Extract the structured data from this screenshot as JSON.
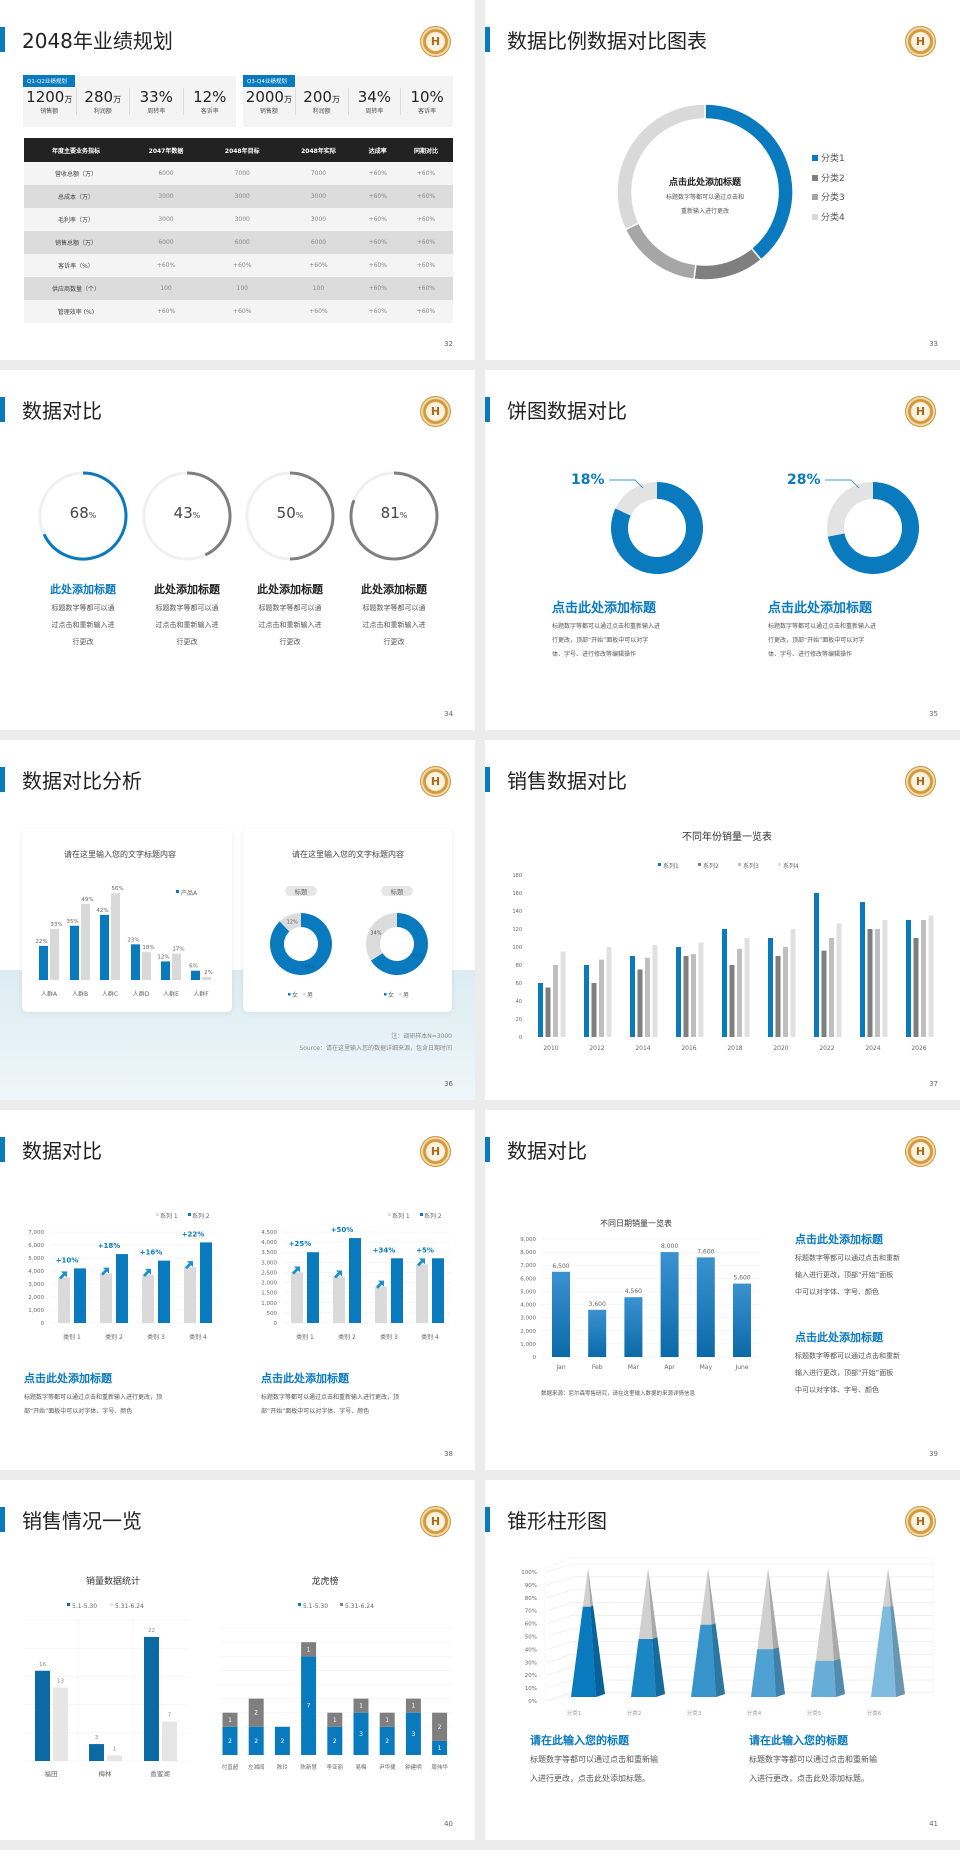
{
  "s32": {
    "title": "2048年业绩规划",
    "page": "32",
    "cards": [
      {
        "tab": "Q1-Q2业绩规划",
        "metrics": [
          {
            "value": "1200",
            "unit": "万",
            "label": "销售额"
          },
          {
            "value": "280",
            "unit": "万",
            "label": "利润额"
          },
          {
            "value": "33%",
            "unit": "",
            "label": "周转率"
          },
          {
            "value": "12%",
            "unit": "",
            "label": "客诉率"
          }
        ]
      },
      {
        "tab": "Q3-Q4业绩规划",
        "metrics": [
          {
            "value": "2000",
            "unit": "万",
            "label": "销售额"
          },
          {
            "value": "200",
            "unit": "万",
            "label": "利润额"
          },
          {
            "value": "34%",
            "unit": "",
            "label": "周转率"
          },
          {
            "value": "10%",
            "unit": "",
            "label": "客诉率"
          }
        ]
      }
    ],
    "table": {
      "header": [
        "年度主要业务指标",
        "2047年数据",
        "2048年目标",
        "2048年实际",
        "达成率",
        "同期对比"
      ],
      "rows": [
        [
          "营收总额（万）",
          "6000",
          "7000",
          "7000",
          "+60%",
          "+60%"
        ],
        [
          "总成本（万）",
          "3000",
          "3000",
          "3000",
          "+60%",
          "+60%"
        ],
        [
          "毛利率（万）",
          "3000",
          "3000",
          "3000",
          "+60%",
          "+60%"
        ],
        [
          "销售总额（万）",
          "6000",
          "6000",
          "6000",
          "+60%",
          "+60%"
        ],
        [
          "客诉率（%）",
          "+60%",
          "+60%",
          "+60%",
          "+60%",
          "+60%"
        ],
        [
          "供应商数量（个）",
          "100",
          "100",
          "100",
          "+60%",
          "+60%"
        ],
        [
          "管理效率 (%)",
          "+60%",
          "+60%",
          "+60%",
          "+60%",
          "+60%"
        ]
      ]
    }
  },
  "s33": {
    "title": "数据比例数据对比图表",
    "page": "33",
    "center_title": "点击此处添加标题",
    "center_text_1": "标题数字等都可以通过点击和",
    "center_text_2": "重新输入进行更改"
  },
  "s34": {
    "title": "数据对比",
    "page": "34",
    "items": [
      {
        "value_label": "68",
        "unit": "%",
        "heading": "此处添加标题",
        "lines": [
          "标题数字等都可以通",
          "过点击和重新输入进",
          "行更改"
        ]
      },
      {
        "value_label": "43",
        "unit": "%",
        "heading": "此处添加标题",
        "lines": [
          "标题数字等都可以通",
          "过点击和重新输入进",
          "行更改"
        ]
      },
      {
        "value_label": "50",
        "unit": "%",
        "heading": "此处添加标题",
        "lines": [
          "标题数字等都可以通",
          "过点击和重新输入进",
          "行更改"
        ]
      },
      {
        "value_label": "81",
        "unit": "%",
        "heading": "此处添加标题",
        "lines": [
          "标题数字等都可以通",
          "过点击和重新输入进",
          "行更改"
        ]
      }
    ]
  },
  "s35": {
    "title": "饼图数据对比",
    "page": "35",
    "items": [
      {
        "label": "18%",
        "heading": "点击此处添加标题",
        "lines": [
          "标题数字等都可以通过点击和重新输入进",
          "行更改，顶部“开始”面板中可以对字",
          "体、字号、进行修改等编辑操作"
        ]
      },
      {
        "label": "28%",
        "heading": "点击此处添加标题",
        "lines": [
          "标题数字等都可以通过点击和重新输入进",
          "行更改，顶部“开始”面板中可以对字",
          "体、字号、进行修改等编辑操作"
        ]
      }
    ]
  },
  "s36": {
    "title": "数据对比分析",
    "page": "36",
    "note": "注：调研样本N=3000",
    "source": "Source：请在这里输入您的数据详细来源，包含日期时间"
  },
  "s37": {
    "title": "销售数据对比",
    "page": "37"
  },
  "s38": {
    "title": "数据对比",
    "page": "38",
    "texts": [
      {
        "heading": "点击此处添加标题",
        "lines": [
          "标题数字等都可以通过点击和重新输入进行更改，顶",
          "部“开始”面板中可以对字体、字号、颜色"
        ]
      },
      {
        "heading": "点击此处添加标题",
        "lines": [
          "标题数字等都可以通过点击和重新输入进行更改，顶",
          "部“开始”面板中可以对字体、字号、颜色"
        ]
      }
    ]
  },
  "s39": {
    "title": "数据对比",
    "page": "39",
    "source": "数据来源：尼尔森零售研究，请在这里输入数据的来源详情信息",
    "texts": [
      {
        "heading": "点击此处添加标题",
        "lines": [
          "标题数字等都可以通过点击和重新",
          "输入进行更改，顶部“开始”面板",
          "中可以对字体、字号、颜色"
        ]
      },
      {
        "heading": "点击此处添加标题",
        "lines": [
          "标题数字等都可以通过点击和重新",
          "输入进行更改，顶部“开始”面板",
          "中可以对字体、字号、颜色"
        ]
      }
    ]
  },
  "s40": {
    "title": "销售情况一览",
    "page": "40"
  },
  "s41": {
    "title": "锥形柱形图",
    "page": "41",
    "texts": [
      {
        "heading": "请在此输入您的标题",
        "lines": [
          "标题数字等都可以通过点击和重新输",
          "入进行更改，点击此处添加标题。"
        ]
      },
      {
        "heading": "请在此输入您的标题",
        "lines": [
          "标题数字等都可以通过点击和重新输",
          "入进行更改，点击此处添加标题。"
        ]
      }
    ]
  },
  "logo_text": "H",
  "colors": {
    "accent": "#0a7abf",
    "dark_gray": "#7f7f7f",
    "mid_gray": "#bfbfbf",
    "light_gray": "#e0e0e0"
  },
  "chart_data": [
    {
      "type": "pie",
      "donut": true,
      "categories": [
        "分类1",
        "分类2",
        "分类3",
        "分类4"
      ],
      "values": [
        39,
        13,
        16,
        32
      ],
      "colors": [
        "#0a7abf",
        "#7f7f7f",
        "#a6a6a6",
        "#d9d9d9"
      ],
      "legend": "right"
    },
    {
      "type": "pie",
      "donut": true,
      "values": [
        68,
        43,
        50,
        81
      ],
      "unit": "%",
      "colors": [
        "#0a7abf",
        "#7f7f7f",
        "#7f7f7f",
        "#7f7f7f"
      ]
    },
    {
      "type": "pie",
      "donut": true,
      "values": [
        18,
        28
      ],
      "unit": "%"
    },
    {
      "type": "bar",
      "title": "请在这里输入您的文字标题内容",
      "categories": [
        "人群A",
        "人群B",
        "人群C",
        "人群D",
        "人群E",
        "人群F"
      ],
      "series": [
        {
          "name": "产品A",
          "values": [
            22,
            35,
            42,
            23,
            12,
            6
          ]
        },
        {
          "values": [
            33,
            49,
            56,
            18,
            17,
            2
          ]
        }
      ],
      "data_labels": [
        "22%",
        "35%",
        "42%",
        "23%",
        "12%",
        "6%",
        "33%",
        "49%",
        "56%",
        "18%",
        "17%",
        "2%"
      ],
      "legend": "top-right"
    },
    {
      "type": "pie",
      "donut": true,
      "title": "请在这里输入您的文字标题内容",
      "sub_labels": [
        "标题",
        "标题"
      ],
      "categories": [
        "女",
        "男"
      ],
      "series": [
        {
          "values": [
            88,
            12
          ],
          "labels": [
            "88%",
            "12%"
          ]
        },
        {
          "values": [
            66,
            34
          ],
          "labels": [
            "66%",
            "34%"
          ]
        }
      ],
      "legend": "bottom"
    },
    {
      "type": "bar",
      "title": "不同年份销量一览表",
      "categories": [
        "2010",
        "2012",
        "2014",
        "2016",
        "2018",
        "2020",
        "2022",
        "2024",
        "2026"
      ],
      "series": [
        {
          "name": "系列1",
          "values": [
            60,
            80,
            90,
            100,
            120,
            110,
            160,
            150,
            130
          ]
        },
        {
          "name": "系列2",
          "values": [
            55,
            60,
            75,
            90,
            80,
            90,
            96,
            120,
            110
          ]
        },
        {
          "name": "系列3",
          "values": [
            80,
            86,
            88,
            92,
            98,
            100,
            110,
            120,
            130
          ]
        },
        {
          "name": "系列4",
          "values": [
            95,
            100,
            102,
            105,
            110,
            120,
            126,
            130,
            135
          ]
        }
      ],
      "ylim": [
        0,
        180
      ],
      "yticks": [
        "0",
        "20",
        "40",
        "60",
        "80",
        "100",
        "120",
        "140",
        "160",
        "180"
      ],
      "legend": "top",
      "grid": false
    },
    {
      "type": "bar",
      "categories": [
        "类别 1",
        "类别 2",
        "类别 3",
        "类别 4"
      ],
      "series": [
        {
          "name": "系列 1",
          "values": [
            3500,
            3800,
            3700,
            4300
          ]
        },
        {
          "name": "系列 2",
          "values": [
            4200,
            5300,
            4800,
            6200
          ]
        }
      ],
      "annotations": [
        "+10%",
        "+18%",
        "+16%",
        "+22%"
      ],
      "ylim": [
        0,
        7000
      ],
      "yticks": [
        "0",
        "1,000",
        "2,000",
        "3,000",
        "4,000",
        "5,000",
        "6,000",
        "7,000"
      ],
      "legend": "top-right",
      "grid": true
    },
    {
      "type": "bar",
      "categories": [
        "类别 1",
        "类别 2",
        "类别 3",
        "类别 4"
      ],
      "series": [
        {
          "name": "系列 1",
          "values": [
            2500,
            2300,
            1800,
            2900
          ]
        },
        {
          "name": "系列 2",
          "values": [
            3500,
            4200,
            3200,
            3200
          ]
        }
      ],
      "annotations": [
        "+25%",
        "+50%",
        "+34%",
        "+5%"
      ],
      "ylim": [
        0,
        4500
      ],
      "yticks": [
        "0",
        "500",
        "1,000",
        "1,500",
        "2,000",
        "2,500",
        "3,000",
        "3,500",
        "4,000",
        "4,500"
      ],
      "legend": "top-right",
      "grid": true
    },
    {
      "type": "bar",
      "title": "不同日期销量一览表",
      "categories": [
        "Jan",
        "Feb",
        "Mar",
        "Apr",
        "May",
        "June"
      ],
      "values": [
        6500,
        3600,
        4560,
        8000,
        7600,
        5600
      ],
      "data_labels": [
        "6,500",
        "3,600",
        "4,560",
        "8,000",
        "7,600",
        "5,600"
      ],
      "ylim": [
        0,
        9000
      ],
      "yticks": [
        "0",
        "1,000",
        "2,000",
        "3,000",
        "4,000",
        "5,000",
        "6,000",
        "7,000",
        "8,000",
        "9,000"
      ],
      "grid": true
    },
    {
      "type": "bar",
      "title": "销量数据统计",
      "categories": [
        "福田",
        "梅林",
        "香蜜湖"
      ],
      "series": [
        {
          "name": "5.1-5.30",
          "values": [
            16,
            3,
            22
          ]
        },
        {
          "name": "5.31-6.24",
          "values": [
            13,
            1,
            7
          ]
        }
      ],
      "ylim": [
        0,
        25
      ],
      "legend": "top",
      "grid": true
    },
    {
      "type": "bar",
      "stacked": true,
      "title": "龙虎榜",
      "categories": [
        "付直超",
        "左湘闻",
        "陈玲",
        "陈新慧",
        "李亚丽",
        "易梅",
        "尹华捷",
        "钟建明",
        "周伟华"
      ],
      "series": [
        {
          "name": "5.1-5.30",
          "values": [
            2,
            2,
            2,
            7,
            2,
            3,
            2,
            3,
            1
          ]
        },
        {
          "name": "5.31-6.24",
          "values": [
            1,
            2,
            0,
            1,
            1,
            1,
            1,
            1,
            2
          ]
        }
      ],
      "ylim": [
        0,
        9
      ],
      "legend": "top",
      "grid": true
    },
    {
      "type": "bar",
      "shape": "cone",
      "categories": [
        "分类1",
        "分类2",
        "分类3",
        "分类4",
        "分类5",
        "分类6"
      ],
      "values": [
        70,
        45,
        56,
        37,
        28,
        70
      ],
      "ylim": [
        0,
        100
      ],
      "yticks": [
        "0%",
        "10%",
        "20%",
        "30%",
        "40%",
        "50%",
        "60%",
        "70%",
        "80%",
        "90%",
        "100%"
      ],
      "grid": true
    }
  ]
}
